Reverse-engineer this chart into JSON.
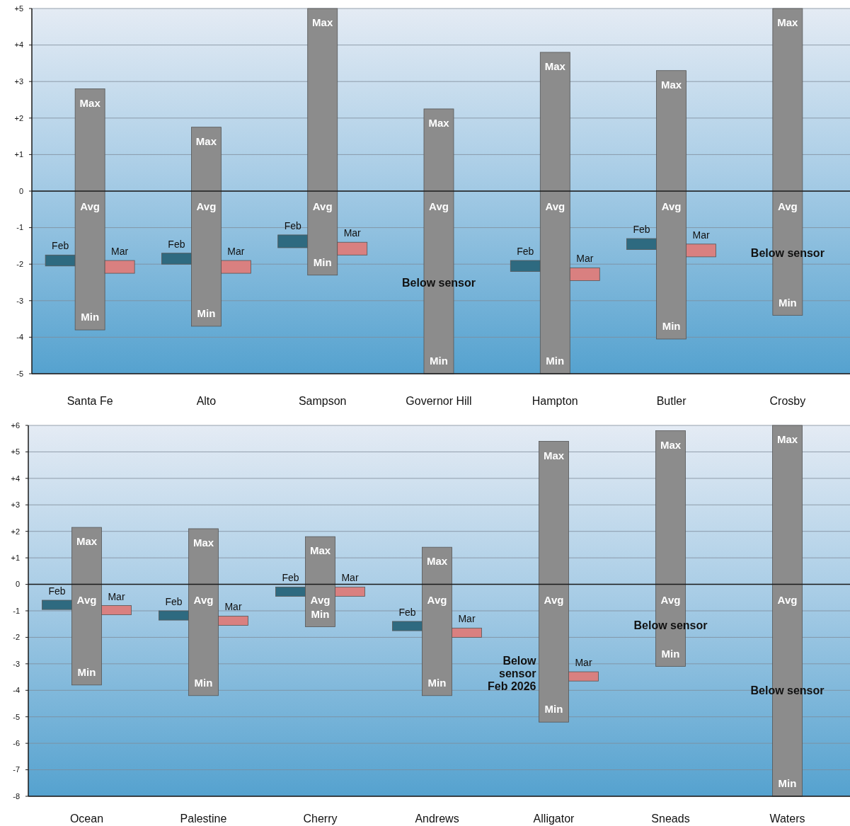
{
  "chart_data": [
    {
      "type": "bar",
      "categories": [
        "Santa Fe",
        "Alto",
        "Sampson",
        "Governor Hill",
        "Hampton",
        "Butler",
        "Crosby"
      ],
      "series": [
        {
          "name": "Feb",
          "color": "#2e6a80",
          "base": [
            -2.05,
            -2.0,
            -1.55,
            null,
            -2.2,
            -1.6,
            null
          ],
          "values": [
            0.3,
            0.3,
            0.35,
            null,
            0.3,
            0.3,
            null
          ]
        },
        {
          "color": "#8c8c8c",
          "base": [
            -3.8,
            -3.7,
            -2.3,
            -5,
            -5,
            -4.05,
            -3.4
          ],
          "values": [
            6.6,
            5.45,
            7.3,
            7.25,
            8.8,
            7.35,
            8.4
          ]
        },
        {
          "name": "Mar",
          "color": "#d98080",
          "base": [
            -2.25,
            -2.25,
            -1.75,
            null,
            -2.45,
            -1.8,
            null
          ],
          "values": [
            0.35,
            0.35,
            0.35,
            null,
            0.35,
            0.35,
            null
          ]
        }
      ],
      "ylim": [
        -5,
        5
      ],
      "yticks": [
        {
          "value": 5,
          "label": "+5"
        },
        {
          "value": 4,
          "label": "+4"
        },
        {
          "value": 3,
          "label": "+3"
        },
        {
          "value": 2,
          "label": "+2"
        },
        {
          "value": 1,
          "label": "+1"
        },
        0,
        -1,
        -2,
        -3,
        -4,
        -5
      ],
      "grid": "y",
      "annotations": [
        "Max",
        "Avg",
        "Min",
        "Max",
        "Avg",
        "Min",
        "Max",
        "Avg",
        "Min",
        "Max",
        "Avg",
        "Min",
        "Below sensor",
        "Max",
        "Avg",
        "Min",
        "Max",
        "Avg",
        "Min",
        "Max",
        "Avg",
        "Min",
        "Below sensor"
      ]
    },
    {
      "type": "bar",
      "categories": [
        "Ocean",
        "Palestine",
        "Cherry",
        "Andrews",
        "Alligator",
        "Sneads",
        "Waters"
      ],
      "series": [
        {
          "name": "Feb",
          "color": "#2e6a80",
          "base": [
            -0.95,
            -1.35,
            -0.45,
            -1.75,
            null,
            null,
            null
          ],
          "values": [
            0.35,
            0.35,
            0.35,
            0.35,
            null,
            null,
            null
          ]
        },
        {
          "color": "#8c8c8c",
          "base": [
            -3.8,
            -4.2,
            -1.6,
            -4.2,
            -5.2,
            -3.1,
            -8
          ],
          "values": [
            5.95,
            6.3,
            3.4,
            5.6,
            10.6,
            8.9,
            14
          ]
        },
        {
          "name": "Mar",
          "color": "#d98080",
          "base": [
            -1.15,
            -1.55,
            -0.45,
            -2.0,
            -3.65,
            null,
            null
          ],
          "values": [
            0.35,
            0.35,
            0.35,
            0.35,
            0.35,
            null,
            null
          ]
        }
      ],
      "ylim": [
        -8,
        6
      ],
      "yticks": [
        {
          "value": 6,
          "label": "+6"
        },
        {
          "value": 5,
          "label": "+5"
        },
        {
          "value": 4,
          "label": "+4"
        },
        {
          "value": 3,
          "label": "+3"
        },
        {
          "value": 2,
          "label": "+2"
        },
        {
          "value": 1,
          "label": "+1"
        },
        0,
        -1,
        -2,
        -3,
        -4,
        -5,
        -6,
        -7,
        -8
      ],
      "grid": "y",
      "annotations": [
        "Max",
        "Avg",
        "Min",
        "Max",
        "Avg",
        "Min",
        "Max",
        "Avg",
        "Min",
        "Max",
        "Avg",
        "Min",
        "Max",
        "Avg",
        "Min",
        "Below sensor Feb 2026",
        "Max",
        "Avg",
        "Min",
        "Below sensor",
        "Max",
        "Avg",
        "Min",
        "Below sensor"
      ]
    }
  ]
}
